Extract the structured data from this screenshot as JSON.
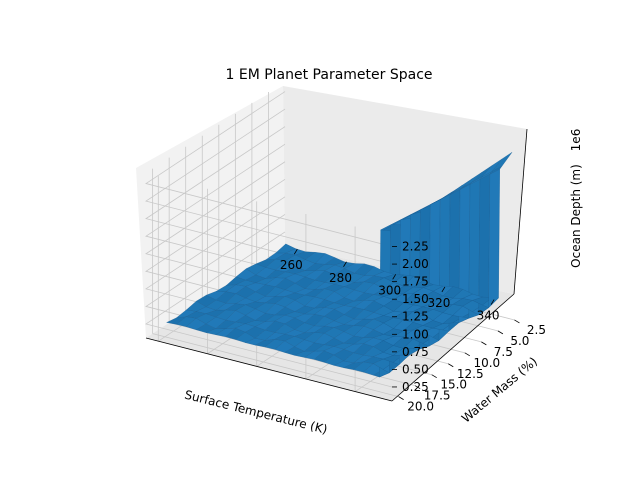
{
  "chart_data": {
    "type": "surface",
    "title": "1 EM Planet Parameter Space",
    "xlabel": "Surface Temperature (K)",
    "ylabel": "Water Mass (%)",
    "zlabel": "Ocean Depth (m)",
    "z_multiplier_label": "1e6",
    "x_ticks": [
      "260",
      "280",
      "300",
      "320",
      "340"
    ],
    "y_ticks": [
      "2.5",
      "5.0",
      "7.5",
      "10.0",
      "12.5",
      "15.0",
      "17.5",
      "20.0"
    ],
    "z_ticks": [
      "0.25",
      "0.50",
      "0.75",
      "1.00",
      "1.25",
      "1.50",
      "1.75",
      "2.00",
      "2.25"
    ],
    "xlim": [
      255,
      355
    ],
    "ylim": [
      0,
      21
    ],
    "zlim": [
      0.05,
      2.4
    ],
    "grid": true,
    "surface_color": "#1f77b4",
    "surface_edge_color": "#1a5e93",
    "pane_color": "#f2f2f2",
    "note_on_shape": "Surface is near the bottom of the z range for most of the domain; sharp rise to ~2.3e6 m at the hottest temperatures (~345-350 K) for high water mass.",
    "surface_profile": {
      "low_temp_depth_e6": 0.15,
      "high_temp_threshold_K": 345,
      "high_temp_depth_e6": 2.3
    }
  }
}
